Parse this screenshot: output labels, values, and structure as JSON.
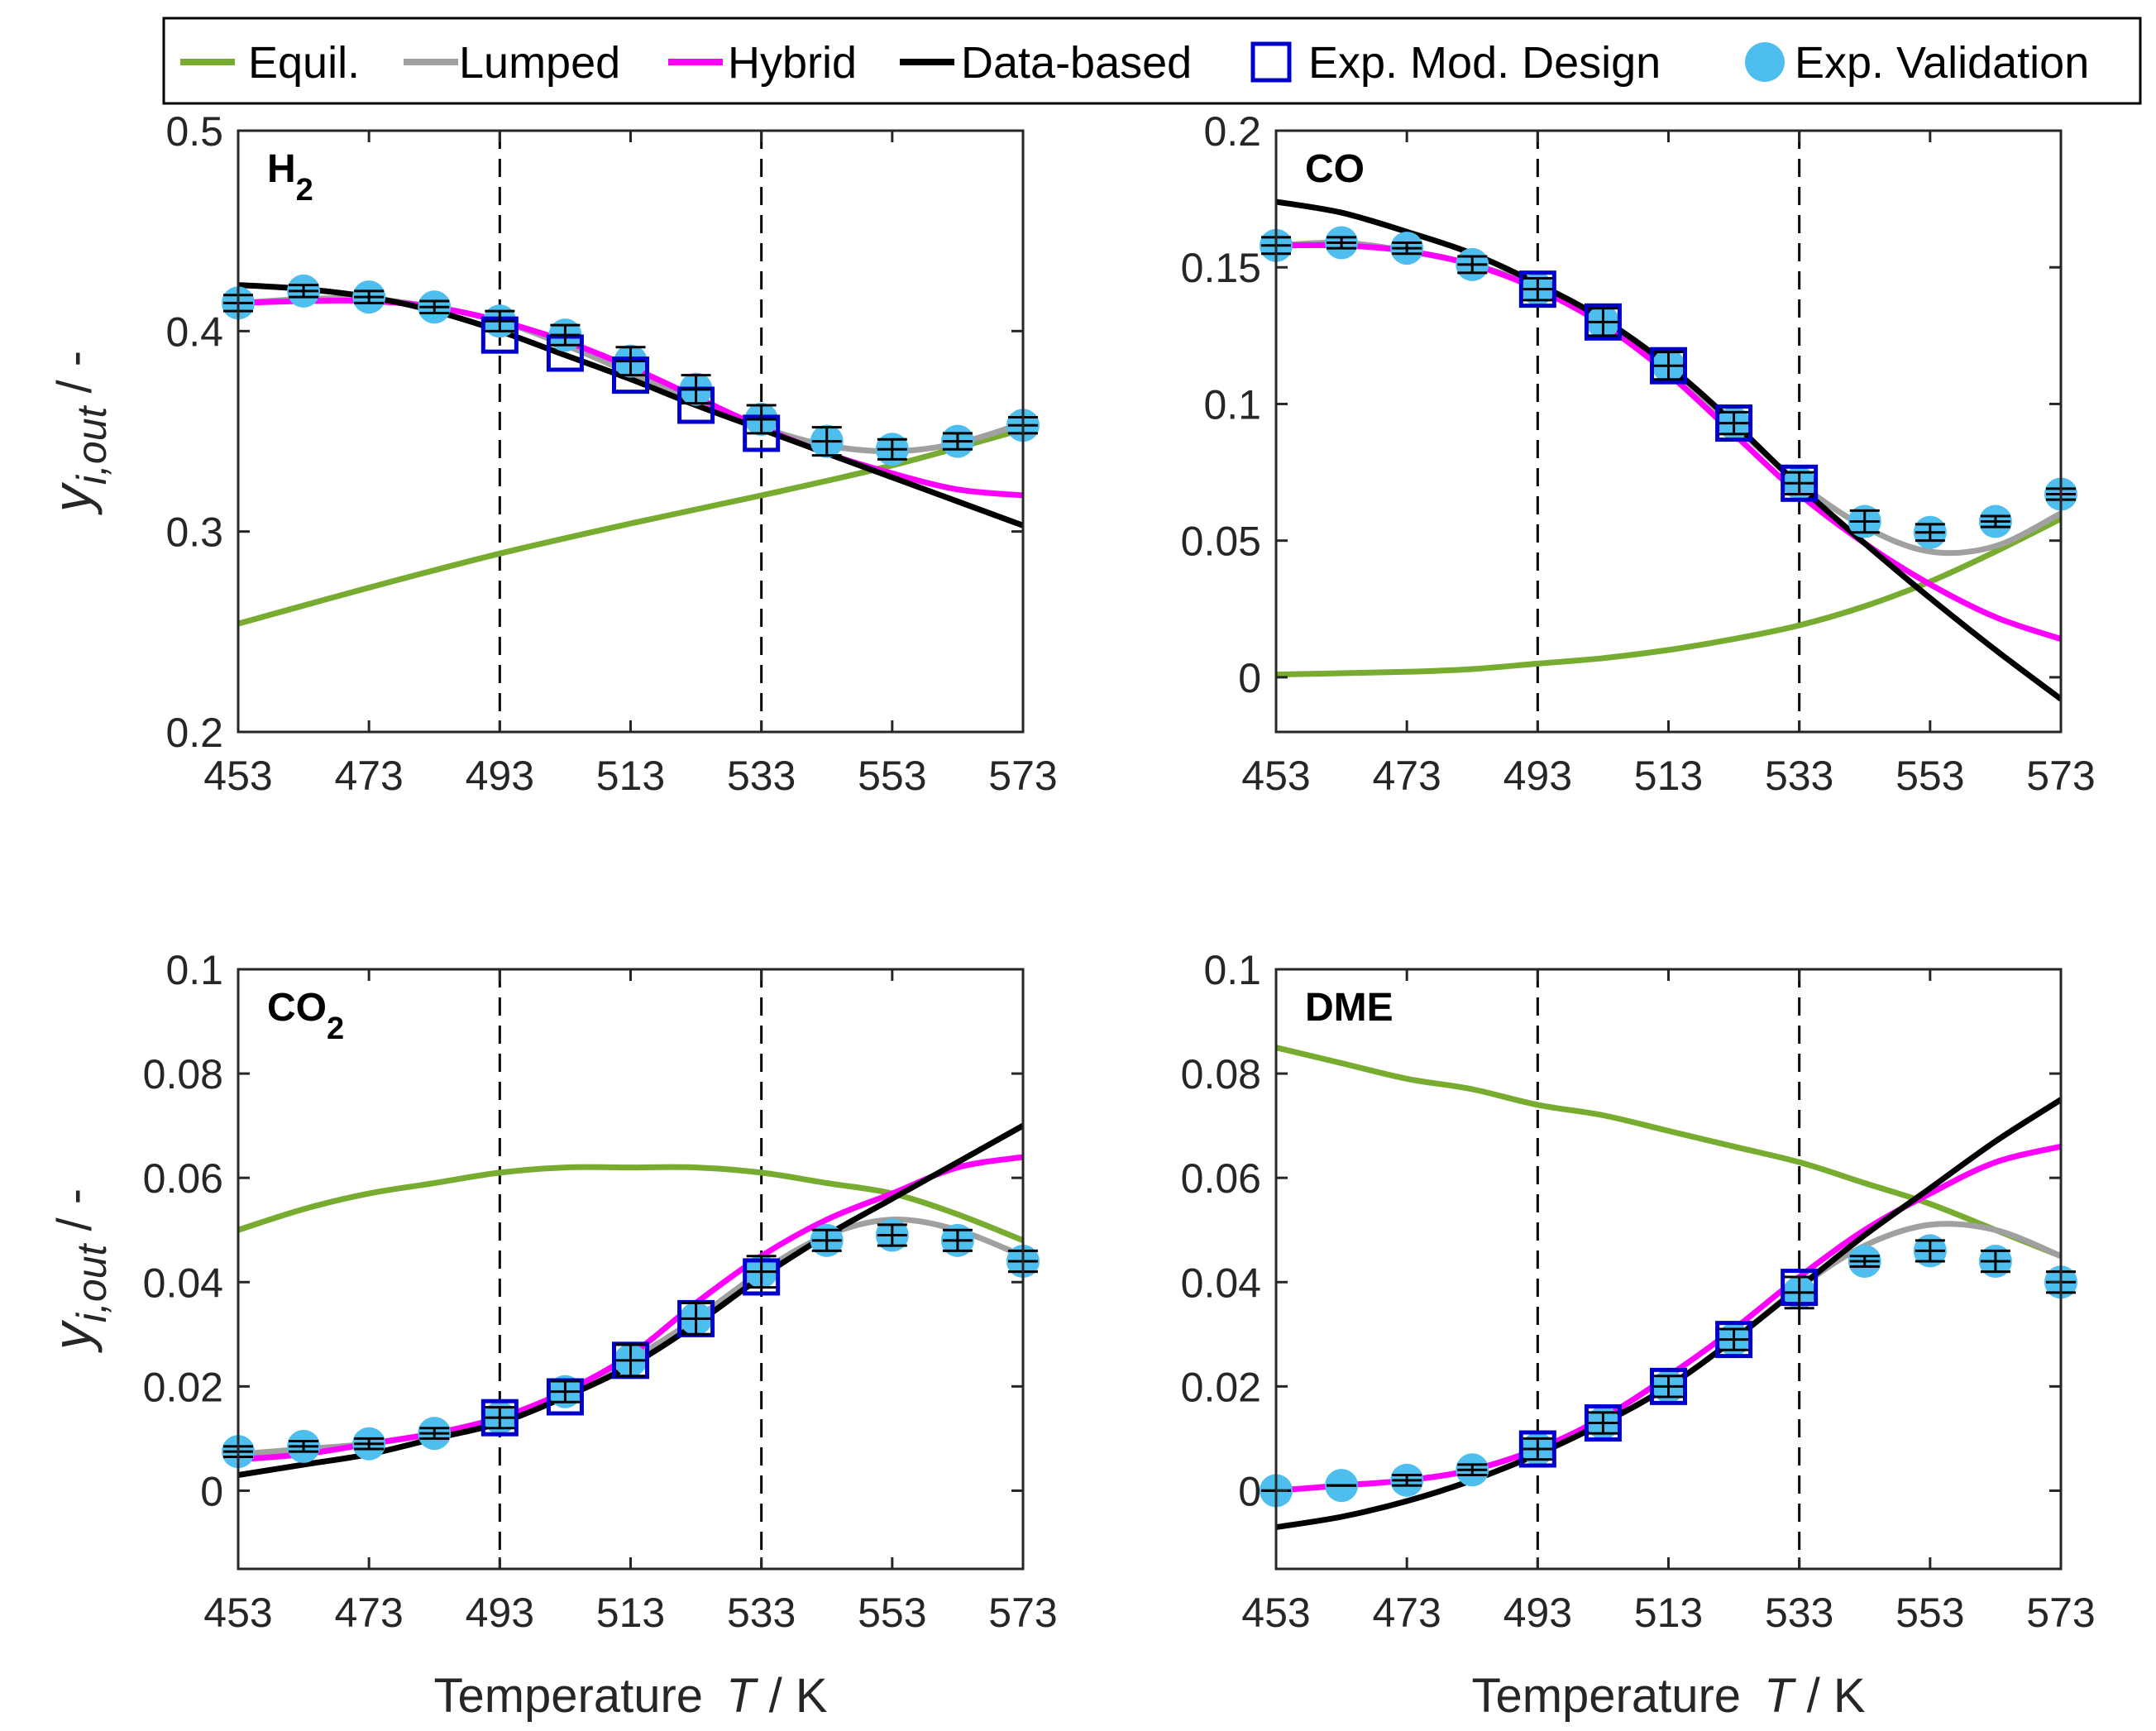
{
  "legend": {
    "entries": [
      {
        "label": "Equil.",
        "kind": "line",
        "color": "#77AC30"
      },
      {
        "label": "Lumped",
        "kind": "line",
        "color": "#A0A0A0"
      },
      {
        "label": "Hybrid",
        "kind": "line",
        "color": "#FF00FF"
      },
      {
        "label": "Data-based",
        "kind": "line",
        "color": "#000000"
      },
      {
        "label": "Exp. Mod. Design",
        "kind": "square",
        "color": "#0000CC"
      },
      {
        "label": "Exp. Validation",
        "kind": "dot",
        "color": "#4DBEEE"
      }
    ]
  },
  "axis_text": {
    "xlabel_prefix": "Temperature",
    "xlabel_var": "T",
    "xlabel_unit": " / K",
    "ylabel_main": "y",
    "ylabel_sub": "i,out",
    "ylabel_unit": " / -"
  },
  "chart_data": [
    {
      "type": "line",
      "title": "H",
      "title_sub": "2",
      "xlim": [
        453,
        573
      ],
      "ylim": [
        0.2,
        0.5
      ],
      "xticks": [
        "453",
        "473",
        "493",
        "513",
        "533",
        "553",
        "573"
      ],
      "yticks": [
        "0.2",
        "0.3",
        "0.4",
        "0.5"
      ],
      "ytick_values": [
        0.2,
        0.3,
        0.4,
        0.5
      ],
      "vlines": [
        493,
        533
      ],
      "series": [
        {
          "name": "Equil.",
          "x": [
            453,
            473,
            493,
            513,
            533,
            553,
            573
          ],
          "y": [
            0.254,
            0.272,
            0.289,
            0.304,
            0.318,
            0.333,
            0.351
          ]
        },
        {
          "name": "Lumped",
          "x": [
            453,
            463,
            473,
            483,
            493,
            503,
            513,
            523,
            533,
            543,
            553,
            563,
            573
          ],
          "y": [
            0.414,
            0.416,
            0.416,
            0.412,
            0.405,
            0.393,
            0.379,
            0.365,
            0.352,
            0.343,
            0.34,
            0.344,
            0.354
          ]
        },
        {
          "name": "Hybrid",
          "x": [
            453,
            463,
            473,
            483,
            493,
            503,
            513,
            523,
            533,
            543,
            553,
            563,
            573
          ],
          "y": [
            0.414,
            0.415,
            0.415,
            0.412,
            0.405,
            0.395,
            0.382,
            0.367,
            0.352,
            0.339,
            0.329,
            0.321,
            0.318
          ]
        },
        {
          "name": "Data-based",
          "x": [
            453,
            463,
            473,
            483,
            493,
            503,
            513,
            523,
            533,
            543,
            553,
            563,
            573
          ],
          "y": [
            0.423,
            0.421,
            0.417,
            0.41,
            0.4,
            0.388,
            0.376,
            0.363,
            0.351,
            0.339,
            0.327,
            0.315,
            0.303
          ]
        }
      ],
      "exp_design": {
        "x": [
          493,
          503,
          513,
          523,
          533
        ],
        "y": [
          0.398,
          0.389,
          0.378,
          0.363,
          0.349
        ]
      },
      "exp_validation": {
        "x": [
          453,
          463,
          473,
          483,
          493,
          503,
          513,
          523,
          533,
          543,
          553,
          563,
          573
        ],
        "y": [
          0.414,
          0.42,
          0.417,
          0.412,
          0.405,
          0.398,
          0.385,
          0.371,
          0.356,
          0.345,
          0.341,
          0.345,
          0.353
        ],
        "err": [
          0.004,
          0.003,
          0.003,
          0.003,
          0.005,
          0.005,
          0.007,
          0.007,
          0.007,
          0.007,
          0.005,
          0.004,
          0.004
        ]
      }
    },
    {
      "type": "line",
      "title": "CO",
      "title_sub": "",
      "xlim": [
        453,
        573
      ],
      "ylim": [
        -0.02,
        0.2
      ],
      "xticks": [
        "453",
        "473",
        "493",
        "513",
        "533",
        "553",
        "573"
      ],
      "yticks": [
        "0",
        "0.05",
        "0.1",
        "0.15",
        "0.2"
      ],
      "ytick_values": [
        0,
        0.05,
        0.1,
        0.15,
        0.2
      ],
      "vlines": [
        493,
        533
      ],
      "series": [
        {
          "name": "Equil.",
          "x": [
            453,
            463,
            473,
            483,
            493,
            503,
            513,
            523,
            533,
            543,
            553,
            563,
            573
          ],
          "y": [
            0.001,
            0.0015,
            0.002,
            0.003,
            0.005,
            0.007,
            0.01,
            0.014,
            0.019,
            0.026,
            0.035,
            0.046,
            0.058
          ]
        },
        {
          "name": "Lumped",
          "x": [
            453,
            463,
            473,
            483,
            493,
            503,
            513,
            523,
            533,
            543,
            553,
            563,
            573
          ],
          "y": [
            0.158,
            0.159,
            0.156,
            0.151,
            0.143,
            0.13,
            0.113,
            0.092,
            0.071,
            0.055,
            0.046,
            0.048,
            0.06
          ]
        },
        {
          "name": "Hybrid",
          "x": [
            453,
            463,
            473,
            483,
            493,
            503,
            513,
            523,
            533,
            543,
            553,
            563,
            573
          ],
          "y": [
            0.158,
            0.158,
            0.156,
            0.151,
            0.142,
            0.129,
            0.111,
            0.089,
            0.067,
            0.049,
            0.034,
            0.022,
            0.014
          ]
        },
        {
          "name": "Data-based",
          "x": [
            453,
            463,
            473,
            483,
            493,
            503,
            513,
            523,
            533,
            543,
            553,
            563,
            573
          ],
          "y": [
            0.174,
            0.17,
            0.163,
            0.155,
            0.144,
            0.131,
            0.114,
            0.093,
            0.07,
            0.049,
            0.029,
            0.01,
            -0.008
          ]
        }
      ],
      "exp_design": {
        "x": [
          493,
          503,
          513,
          523,
          533
        ],
        "y": [
          0.142,
          0.13,
          0.114,
          0.093,
          0.071
        ]
      },
      "exp_validation": {
        "x": [
          453,
          463,
          473,
          483,
          493,
          503,
          513,
          523,
          533,
          543,
          553,
          563,
          573
        ],
        "y": [
          0.158,
          0.159,
          0.157,
          0.151,
          0.142,
          0.13,
          0.114,
          0.093,
          0.071,
          0.057,
          0.053,
          0.057,
          0.067
        ],
        "err": [
          0.003,
          0.002,
          0.002,
          0.003,
          0.004,
          0.005,
          0.005,
          0.004,
          0.004,
          0.004,
          0.003,
          0.002,
          0.002
        ]
      }
    },
    {
      "type": "line",
      "title": "CO",
      "title_sub": "2",
      "xlim": [
        453,
        573
      ],
      "ylim": [
        -0.015,
        0.1
      ],
      "xticks": [
        "453",
        "473",
        "493",
        "513",
        "533",
        "553",
        "573"
      ],
      "yticks": [
        "0",
        "0.02",
        "0.04",
        "0.06",
        "0.08",
        "0.1"
      ],
      "ytick_values": [
        0,
        0.02,
        0.04,
        0.06,
        0.08,
        0.1
      ],
      "vlines": [
        493,
        533
      ],
      "series": [
        {
          "name": "Equil.",
          "x": [
            453,
            463,
            473,
            483,
            493,
            503,
            513,
            523,
            533,
            543,
            553,
            563,
            573
          ],
          "y": [
            0.05,
            0.054,
            0.057,
            0.059,
            0.061,
            0.062,
            0.062,
            0.062,
            0.061,
            0.059,
            0.057,
            0.053,
            0.048
          ]
        },
        {
          "name": "Lumped",
          "x": [
            453,
            463,
            473,
            483,
            493,
            503,
            513,
            523,
            533,
            543,
            553,
            563,
            573
          ],
          "y": [
            0.007,
            0.008,
            0.009,
            0.011,
            0.014,
            0.018,
            0.025,
            0.033,
            0.042,
            0.049,
            0.052,
            0.05,
            0.045
          ]
        },
        {
          "name": "Hybrid",
          "x": [
            453,
            463,
            473,
            483,
            493,
            503,
            513,
            523,
            533,
            543,
            553,
            563,
            573
          ],
          "y": [
            0.006,
            0.007,
            0.009,
            0.011,
            0.014,
            0.019,
            0.026,
            0.036,
            0.045,
            0.052,
            0.057,
            0.062,
            0.064
          ]
        },
        {
          "name": "Data-based",
          "x": [
            453,
            463,
            473,
            483,
            493,
            503,
            513,
            523,
            533,
            543,
            553,
            563,
            573
          ],
          "y": [
            0.003,
            0.005,
            0.007,
            0.01,
            0.013,
            0.018,
            0.024,
            0.032,
            0.041,
            0.049,
            0.056,
            0.063,
            0.07
          ]
        }
      ],
      "exp_design": {
        "x": [
          493,
          503,
          513,
          523,
          533
        ],
        "y": [
          0.014,
          0.018,
          0.025,
          0.033,
          0.041
        ]
      },
      "exp_validation": {
        "x": [
          453,
          463,
          473,
          483,
          493,
          503,
          513,
          523,
          533,
          543,
          553,
          563,
          573
        ],
        "y": [
          0.0075,
          0.0085,
          0.009,
          0.011,
          0.014,
          0.019,
          0.025,
          0.033,
          0.042,
          0.048,
          0.049,
          0.048,
          0.044
        ],
        "err": [
          0.001,
          0.001,
          0.001,
          0.001,
          0.002,
          0.002,
          0.003,
          0.003,
          0.003,
          0.002,
          0.002,
          0.002,
          0.002
        ]
      }
    },
    {
      "type": "line",
      "title": "DME",
      "title_sub": "",
      "xlim": [
        453,
        573
      ],
      "ylim": [
        -0.015,
        0.1
      ],
      "xticks": [
        "453",
        "473",
        "493",
        "513",
        "533",
        "553",
        "573"
      ],
      "yticks": [
        "0",
        "0.02",
        "0.04",
        "0.06",
        "0.08",
        "0.1"
      ],
      "ytick_values": [
        0,
        0.02,
        0.04,
        0.06,
        0.08,
        0.1
      ],
      "vlines": [
        493,
        533
      ],
      "series": [
        {
          "name": "Equil.",
          "x": [
            453,
            463,
            473,
            483,
            493,
            503,
            513,
            523,
            533,
            543,
            553,
            563,
            573
          ],
          "y": [
            0.085,
            0.082,
            0.079,
            0.077,
            0.074,
            0.072,
            0.069,
            0.066,
            0.063,
            0.059,
            0.055,
            0.05,
            0.045
          ]
        },
        {
          "name": "Lumped",
          "x": [
            453,
            463,
            473,
            483,
            493,
            503,
            513,
            523,
            533,
            543,
            553,
            563,
            573
          ],
          "y": [
            0.0,
            0.001,
            0.002,
            0.004,
            0.008,
            0.013,
            0.02,
            0.029,
            0.039,
            0.047,
            0.051,
            0.05,
            0.045
          ]
        },
        {
          "name": "Hybrid",
          "x": [
            453,
            463,
            473,
            483,
            493,
            503,
            513,
            523,
            533,
            543,
            553,
            563,
            573
          ],
          "y": [
            0.0,
            0.001,
            0.002,
            0.004,
            0.008,
            0.014,
            0.022,
            0.031,
            0.041,
            0.05,
            0.057,
            0.063,
            0.066
          ]
        },
        {
          "name": "Data-based",
          "x": [
            453,
            463,
            473,
            483,
            493,
            503,
            513,
            523,
            533,
            543,
            553,
            563,
            573
          ],
          "y": [
            -0.007,
            -0.005,
            -0.002,
            0.002,
            0.007,
            0.013,
            0.02,
            0.029,
            0.039,
            0.049,
            0.058,
            0.067,
            0.075
          ]
        }
      ],
      "exp_design": {
        "x": [
          493,
          503,
          513,
          523,
          533
        ],
        "y": [
          0.008,
          0.013,
          0.02,
          0.029,
          0.039
        ]
      },
      "exp_validation": {
        "x": [
          453,
          463,
          473,
          483,
          493,
          503,
          513,
          523,
          533,
          543,
          553,
          563,
          573
        ],
        "y": [
          0.0,
          0.001,
          0.002,
          0.004,
          0.008,
          0.013,
          0.02,
          0.029,
          0.038,
          0.044,
          0.046,
          0.044,
          0.04
        ],
        "err": [
          0.0,
          0.0,
          0.001,
          0.001,
          0.002,
          0.002,
          0.002,
          0.002,
          0.003,
          0.001,
          0.002,
          0.002,
          0.002
        ]
      }
    }
  ]
}
